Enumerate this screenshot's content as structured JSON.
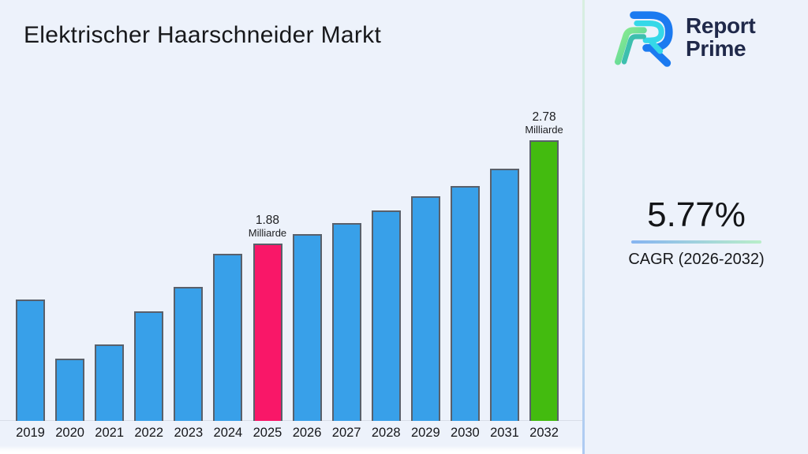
{
  "title": "Elektrischer Haarschneider Markt",
  "logo": {
    "line1": "Report",
    "line2": "Prime"
  },
  "stat": {
    "value": "5.77%",
    "label": "CAGR (2026-2032)"
  },
  "chart_data": {
    "type": "bar",
    "title": "Elektrischer Haarschneider Markt",
    "unit": "Milliarde",
    "categories": [
      "2019",
      "2020",
      "2021",
      "2022",
      "2023",
      "2024",
      "2025",
      "2026",
      "2027",
      "2028",
      "2029",
      "2030",
      "2031",
      "2032"
    ],
    "values": [
      1.39,
      0.88,
      1.0,
      1.29,
      1.5,
      1.79,
      1.88,
      1.96,
      2.06,
      2.17,
      2.29,
      2.38,
      2.53,
      2.78
    ],
    "annotations": [
      {
        "category": "2025",
        "line1": "1.88",
        "line2": "Milliarde"
      },
      {
        "category": "2032",
        "line1": "2.78",
        "line2": "Milliarde"
      }
    ],
    "colors": {
      "bar_default": "#38a0e9",
      "bar_border": "#59606b",
      "highlight": {
        "2025": "#f91768",
        "2032": "#43bb0f"
      }
    },
    "xlabel": "",
    "ylabel": "",
    "ylim_estimate": [
      0.33,
      3.1
    ],
    "grid": "off",
    "legend": "off"
  },
  "accents": {
    "underline_left": "#86b4f1",
    "underline_right": "#b9eec9",
    "divider_top": "#d8efe0",
    "divider_bottom": "#adcaf2",
    "logo_navy": "#20294a",
    "logo_blue": "#1b7af0",
    "logo_cyan": "#35d8e8",
    "logo_green": "#7ce48f",
    "logo_teal": "#3dbfae"
  }
}
